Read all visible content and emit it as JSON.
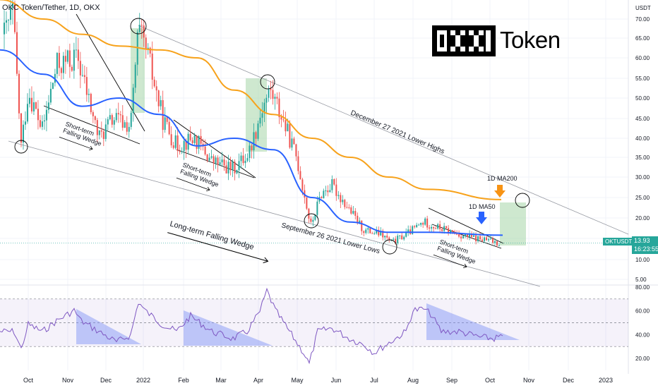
{
  "header": {
    "title": "OKC Token/Tether, 1D, OKX",
    "unit": "USDT",
    "logo_text": "Token"
  },
  "price_badge": {
    "price": "13.93",
    "timer": "16:23:55"
  },
  "ticker_label": "OKTUSDT",
  "annotations": {
    "stf_1": "Short-term\nFalling Wedge",
    "stf_2": "Short-term\nFalling Wedge",
    "stf_3": "Short-term\nFalling Wedge",
    "ltfw": "Long-term Falling Wedge",
    "lower_highs": "December 27 2021 Lower Highs",
    "lower_lows": "September 26 2021 Lower Lows",
    "ma200": "1D MA200",
    "ma50": "1D MA50"
  },
  "colors": {
    "up": "#26a69a",
    "down": "#ef5350",
    "ma50": "#2962ff",
    "ma200": "#f7a21b",
    "rsi": "#7e57c2",
    "green_box": "#a5d6a7",
    "blue_triangle": "#7b8ff7",
    "orange_arrow": "#f79314",
    "blue_arrow": "#2962ff"
  },
  "chart_data": [
    {
      "type": "candlestick",
      "title": "OKC Token/Tether, 1D, OKX",
      "ylabel": "USDT",
      "y_ticks": [
        5.0,
        10.0,
        15.0,
        20.0,
        25.0,
        30.0,
        35.0,
        40.0,
        45.0,
        50.0,
        55.0,
        60.0,
        65.0,
        70.0
      ],
      "x_ticks": [
        "Oct",
        "Nov",
        "Dec",
        "2022",
        "Feb",
        "Mar",
        "Apr",
        "May",
        "Jun",
        "Jul",
        "Aug",
        "Sep",
        "Oct",
        "Nov",
        "Dec",
        "2023"
      ],
      "ylim": [
        3,
        73
      ],
      "grid": true,
      "close_by_month": [
        {
          "month": "Oct",
          "close": 30.0
        },
        {
          "month": "Nov",
          "close": 55.0
        },
        {
          "month": "Dec",
          "close": 45.0
        },
        {
          "month": "2022",
          "close": 68.0
        },
        {
          "month": "Feb",
          "close": 43.0
        },
        {
          "month": "Mar",
          "close": 34.0
        },
        {
          "month": "Apr",
          "close": 50.0
        },
        {
          "month": "May",
          "close": 30.0
        },
        {
          "month": "Jun",
          "close": 25.0
        },
        {
          "month": "Jul",
          "close": 16.0
        },
        {
          "month": "Aug",
          "close": 19.0
        },
        {
          "month": "Sep",
          "close": 15.5
        },
        {
          "month": "Oct",
          "close": 13.93
        }
      ],
      "ma50_by_month": [
        {
          "month": "Oct",
          "value": 62.0
        },
        {
          "month": "Nov",
          "value": 56.0
        },
        {
          "month": "Dec",
          "value": 48.0
        },
        {
          "month": "2022",
          "value": 50.0
        },
        {
          "month": "Feb",
          "value": 46.0
        },
        {
          "month": "Mar",
          "value": 38.0
        },
        {
          "month": "Apr",
          "value": 40.0
        },
        {
          "month": "May",
          "value": 37.0
        },
        {
          "month": "Jun",
          "value": 25.0
        },
        {
          "month": "Jul",
          "value": 19.0
        },
        {
          "month": "Aug",
          "value": 16.5
        },
        {
          "month": "Sep",
          "value": 16.5
        },
        {
          "month": "Oct",
          "value": 15.8
        }
      ],
      "ma200_by_month": [
        {
          "month": "Oct",
          "value": 75.0
        },
        {
          "month": "Nov",
          "value": 70.0
        },
        {
          "month": "Dec",
          "value": 66.0
        },
        {
          "month": "2022",
          "value": 63.0
        },
        {
          "month": "Feb",
          "value": 62.0
        },
        {
          "month": "Mar",
          "value": 60.0
        },
        {
          "month": "Apr",
          "value": 52.0
        },
        {
          "month": "May",
          "value": 46.0
        },
        {
          "month": "Jun",
          "value": 40.0
        },
        {
          "month": "Jul",
          "value": 35.0
        },
        {
          "month": "Aug",
          "value": 30.0
        },
        {
          "month": "Sep",
          "value": 27.0
        },
        {
          "month": "Oct",
          "value": 24.5
        }
      ]
    },
    {
      "type": "line",
      "title": "",
      "y_ticks": [
        20.0,
        40.0,
        60.0,
        80.0
      ],
      "ylim": [
        15,
        82
      ],
      "levels": [
        30,
        50,
        70
      ],
      "rsi_by_month": [
        {
          "month": "Oct",
          "value": 42
        },
        {
          "month": "Nov",
          "value": 55
        },
        {
          "month": "Dec",
          "value": 38
        },
        {
          "month": "2022",
          "value": 72
        },
        {
          "month": "Feb",
          "value": 45
        },
        {
          "month": "Mar",
          "value": 38
        },
        {
          "month": "Apr",
          "value": 70
        },
        {
          "month": "May",
          "value": 25
        },
        {
          "month": "Jun",
          "value": 48
        },
        {
          "month": "Jul",
          "value": 38
        },
        {
          "month": "Aug",
          "value": 62
        },
        {
          "month": "Sep",
          "value": 40
        },
        {
          "month": "Oct",
          "value": 40
        }
      ]
    }
  ]
}
